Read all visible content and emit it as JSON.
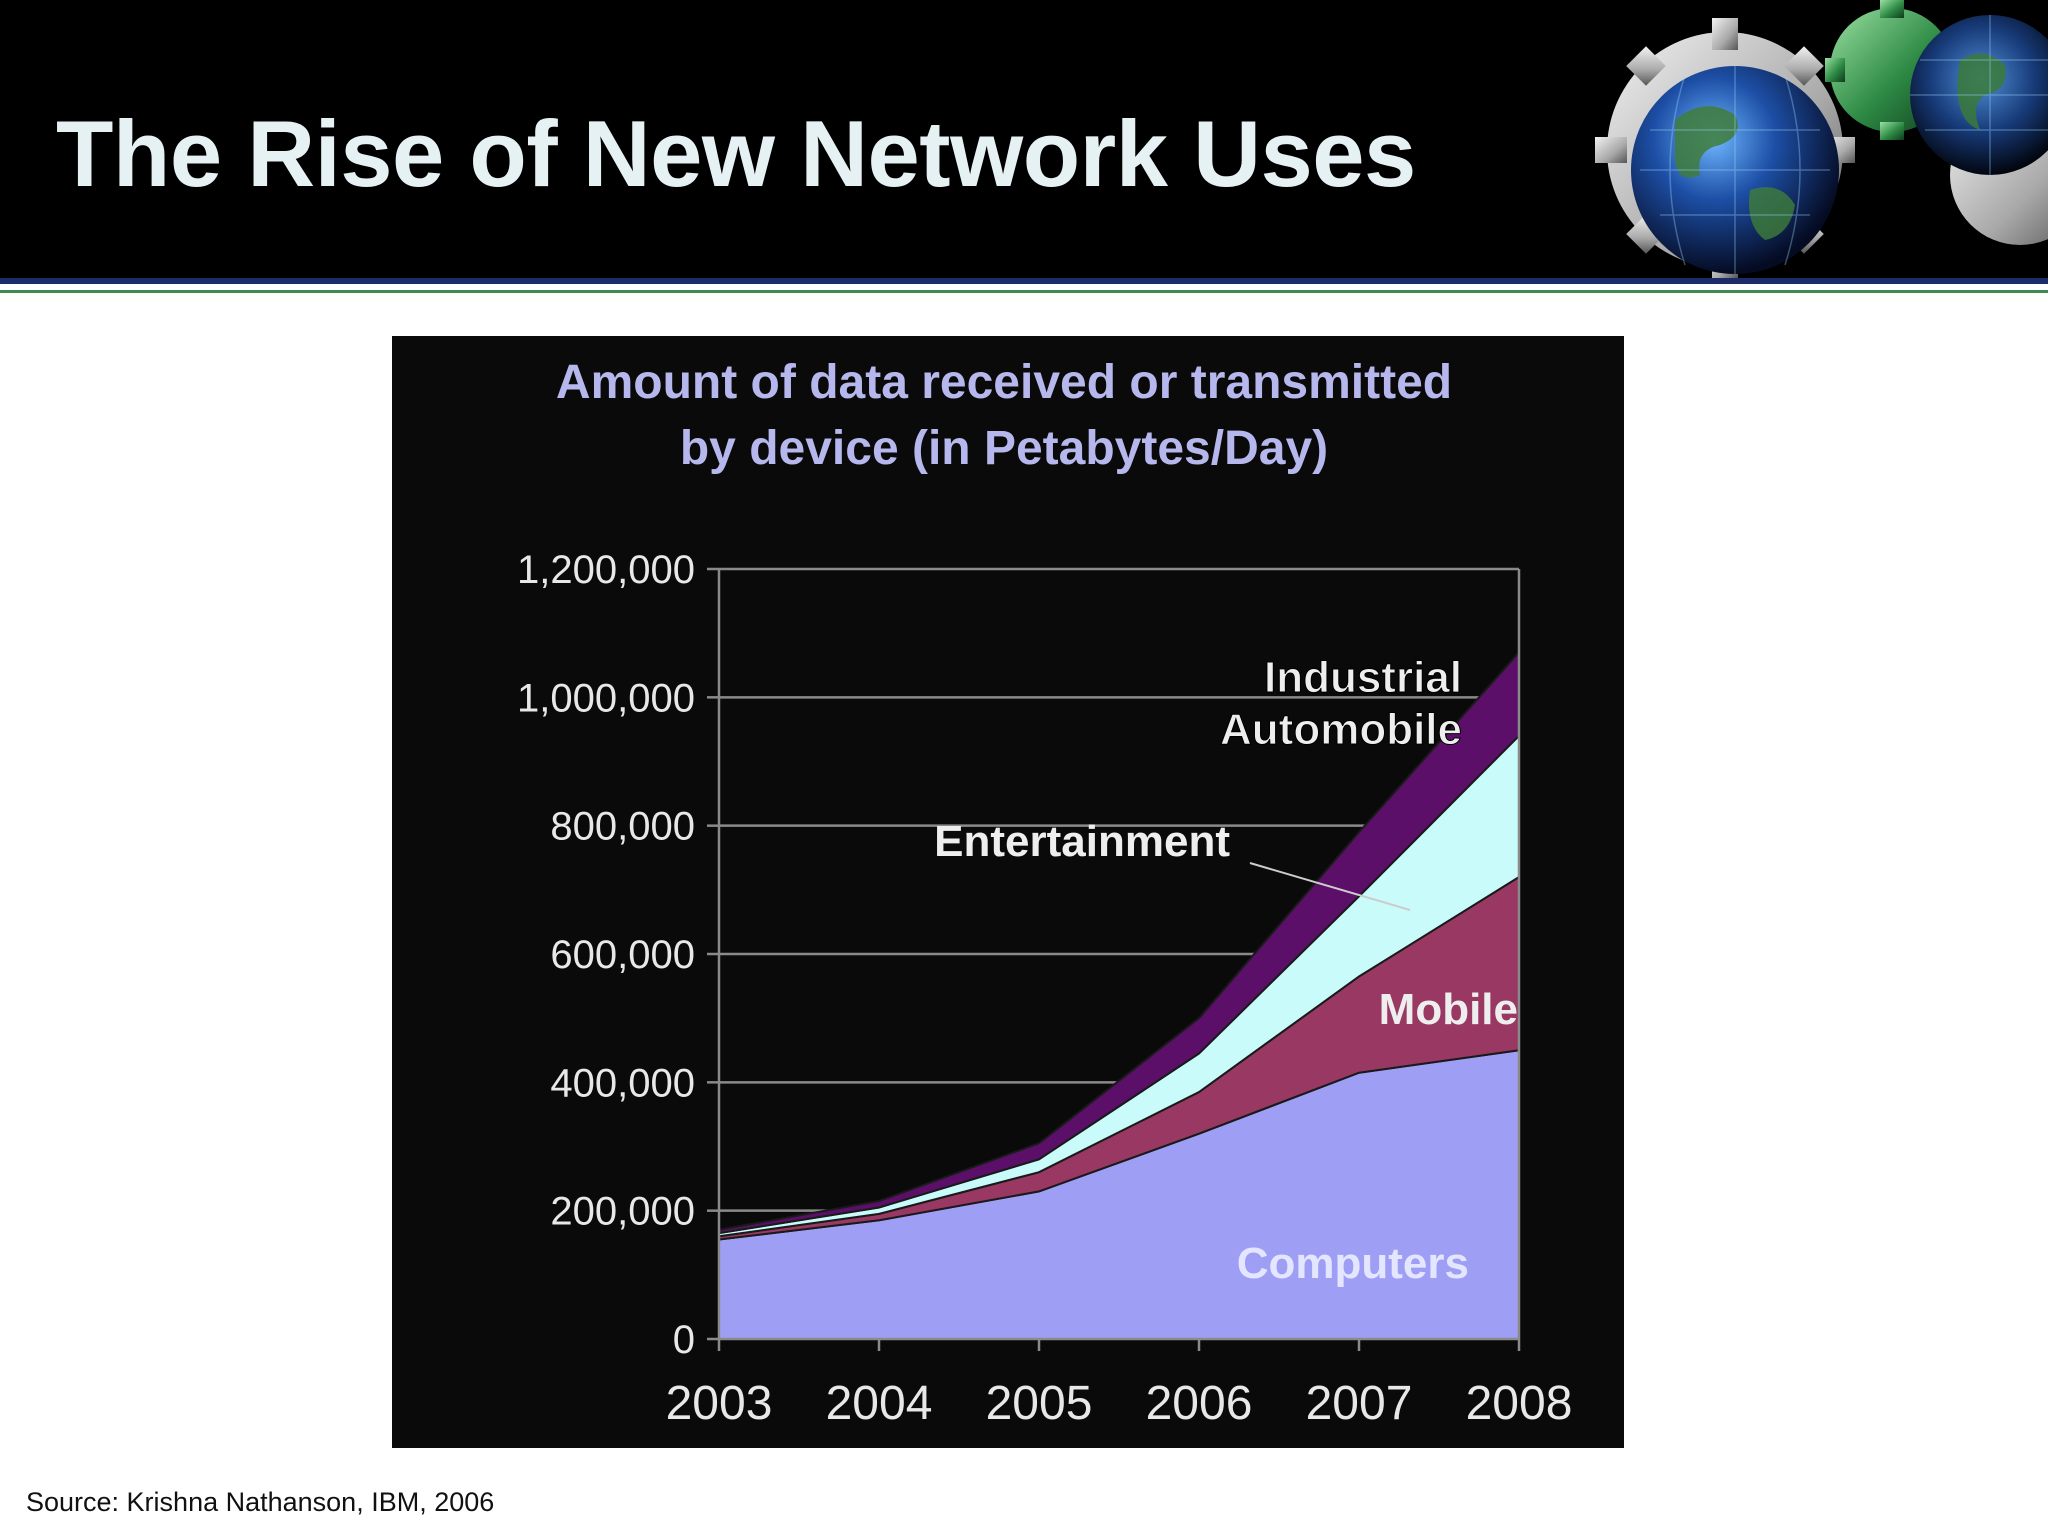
{
  "slide": {
    "title": "The Rise of New Network Uses",
    "source": "Source: Krishna Nathanson, IBM, 2006"
  },
  "chart_data": {
    "type": "area",
    "stacked": true,
    "title": "Amount of data received or transmitted by device (in Petabytes/Day)",
    "title_lines": [
      "Amount of data received or transmitted",
      "by device (in Petabytes/Day)"
    ],
    "x": [
      "2003",
      "2004",
      "2005",
      "2006",
      "2007",
      "2008"
    ],
    "ylim": [
      0,
      1200000
    ],
    "yticks": [
      0,
      200000,
      400000,
      600000,
      800000,
      1000000,
      1200000
    ],
    "ytick_labels": [
      "0",
      "200,000",
      "400,000",
      "600,000",
      "800,000",
      "1,000,000",
      "1,200,000"
    ],
    "grid": true,
    "legend": "inline labels",
    "series": [
      {
        "name": "Computers",
        "color": "#9f9ef5",
        "values": [
          155000,
          185000,
          230000,
          320000,
          415000,
          450000
        ]
      },
      {
        "name": "Mobile",
        "color": "#9a3864",
        "values": [
          5000,
          10000,
          30000,
          65000,
          150000,
          270000
        ]
      },
      {
        "name": "Entertainment",
        "color": "#c9fbfb",
        "values": [
          5000,
          10000,
          20000,
          60000,
          125000,
          220000
        ]
      },
      {
        "name": "Industrial Automobile",
        "color": "#5b0f68",
        "values": [
          5000,
          10000,
          25000,
          55000,
          100000,
          130000
        ]
      }
    ],
    "annotations": [
      {
        "text": "Industrial",
        "series": 3
      },
      {
        "text": "Automobile",
        "series": 3
      },
      {
        "text": "Entertainment",
        "series": 2
      },
      {
        "text": "Mobile",
        "series": 1
      },
      {
        "text": "Computers",
        "series": 0
      }
    ],
    "colors": {
      "background": "#0a0a0a",
      "title": "#b6b7ec",
      "axis_text": "#e8e8e8",
      "gridline": "#8a8a8a",
      "label_text": "#eeeeee"
    }
  }
}
